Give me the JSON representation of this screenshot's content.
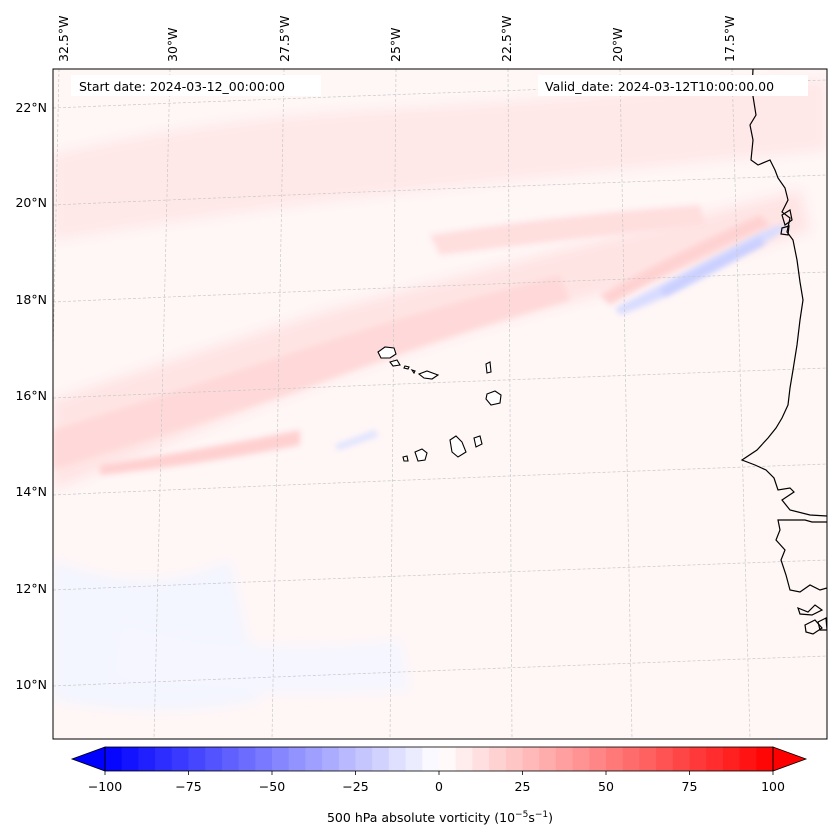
{
  "figure": {
    "start_label": "Start date: 2024-03-12_00:00:00",
    "valid_label": "Valid_date: 2024-03-12T10:00:00.00"
  },
  "map": {
    "lon_labels": [
      "32.5°W",
      "30°W",
      "27.5°W",
      "25°W",
      "22.5°W",
      "20°W",
      "17.5°W"
    ],
    "lat_labels": [
      "22°N",
      "20°N",
      "18°N",
      "16°N",
      "14°N",
      "12°N",
      "10°N"
    ],
    "variable": "500 hPa absolute vorticity"
  },
  "colorbar": {
    "ticks": [
      "−100",
      "−75",
      "−50",
      "−25",
      "0",
      "25",
      "50",
      "75",
      "100"
    ],
    "label_prefix": "500 hPa absolute vorticity (10",
    "label_exp1": "−5",
    "label_mid": "s",
    "label_exp2": "−1",
    "label_suffix": ")",
    "min": -100,
    "max": 100,
    "colors": {
      "low": "#0000ff",
      "mid": "#ffffff",
      "high": "#ff0000"
    }
  },
  "colors": {
    "frame": "#000000",
    "grid": "#c8c8c8",
    "coast": "#000000"
  }
}
